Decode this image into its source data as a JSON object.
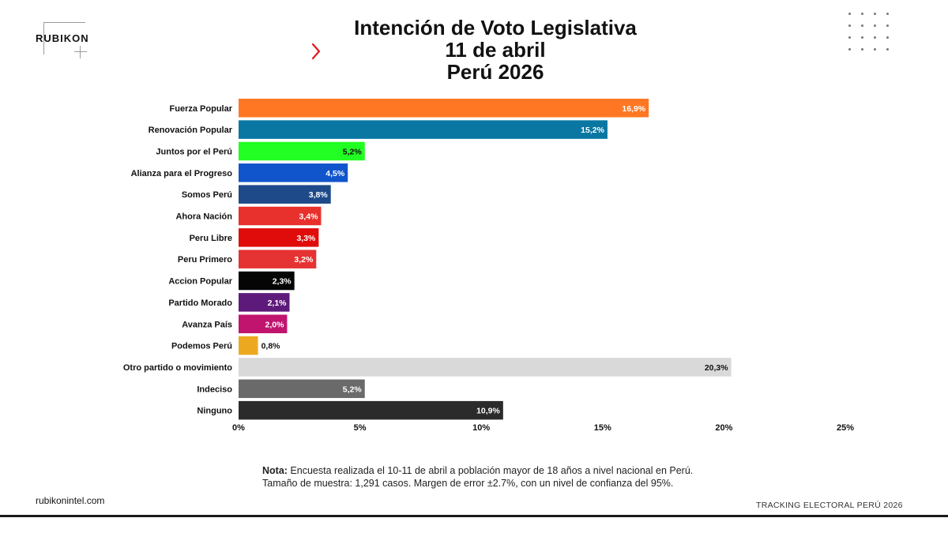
{
  "brand": {
    "logo": "RUBIKON",
    "website": "rubikonintel.com",
    "footer_tag": "TRACKING ELECTORAL PERÚ 2026"
  },
  "header": {
    "title_line1": "Intención de Voto Legislativa",
    "title_line2": "11 de abril",
    "title_line3": "Perú 2026",
    "chevron_icon": "chevron-right-icon",
    "chevron_color": "#e0181e",
    "dots_icon": "dot-grid-icon"
  },
  "note": {
    "label": "Nota:",
    "line1": "Encuesta realizada el 10-11 de abril a población mayor de 18 años a nivel nacional en Perú.",
    "line2": "Tamaño de muestra: 1,291 casos. Margen de error ±2.7%, con un nivel de confianza del 95%."
  },
  "chart_data": {
    "type": "bar",
    "orientation": "horizontal",
    "categories": [
      "Fuerza Popular",
      "Renovación Popular",
      "Juntos por el Perú",
      "Alianza para el Progreso",
      "Somos Perú",
      "Ahora Nación",
      "Peru Libre",
      "Peru Primero",
      "Accion Popular",
      "Partido Morado",
      "Avanza País",
      "Podemos Perú",
      "Otro partido o movimiento",
      "Indeciso",
      "Ninguno"
    ],
    "values": [
      16.9,
      15.2,
      5.2,
      4.5,
      3.8,
      3.4,
      3.3,
      3.2,
      2.3,
      2.1,
      2.0,
      0.8,
      20.3,
      5.2,
      10.9
    ],
    "value_labels": [
      "16,9%",
      "15,2%",
      "5,2%",
      "4,5%",
      "3,8%",
      "3,4%",
      "3,3%",
      "3,2%",
      "2,3%",
      "2,1%",
      "2,0%",
      "0,8%",
      "20,3%",
      "5,2%",
      "10,9%"
    ],
    "colors": [
      "#ff7722",
      "#0a77a3",
      "#22ff22",
      "#1055cc",
      "#1f4a8a",
      "#e8302c",
      "#e00b0b",
      "#e53232",
      "#050505",
      "#5e1a7a",
      "#c0146e",
      "#eca91f",
      "#d9d9d9",
      "#6a6a6a",
      "#2b2b2b"
    ],
    "label_colors": [
      "#ffffff",
      "#ffffff",
      "#111111",
      "#ffffff",
      "#ffffff",
      "#ffffff",
      "#ffffff",
      "#ffffff",
      "#ffffff",
      "#ffffff",
      "#ffffff",
      "#111111",
      "#111111",
      "#ffffff",
      "#ffffff"
    ],
    "label_outside": [
      false,
      false,
      false,
      false,
      false,
      false,
      false,
      false,
      false,
      false,
      false,
      true,
      false,
      false,
      false
    ],
    "xlim": [
      0,
      25
    ],
    "xticks": [
      "0%",
      "5%",
      "10%",
      "15%",
      "20%",
      "25%"
    ],
    "xtick_values": [
      0,
      5,
      10,
      15,
      20,
      25
    ],
    "xlabel": "",
    "ylabel": "",
    "grid": false,
    "legend": "none"
  }
}
